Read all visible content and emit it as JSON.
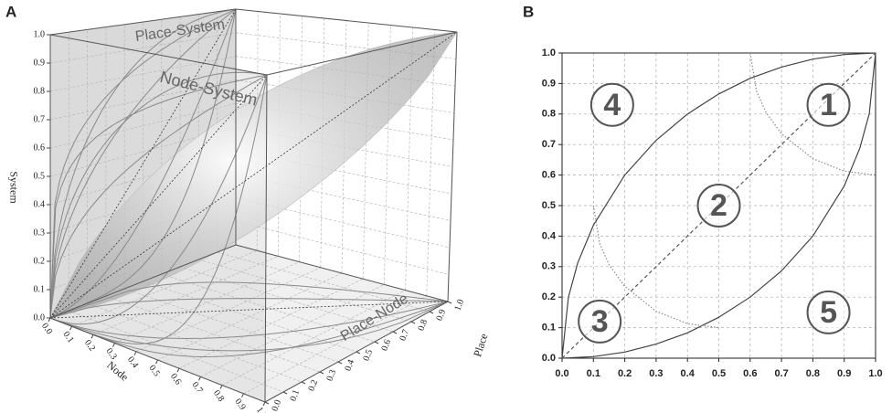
{
  "chart_data": [
    {
      "type": "cube3d",
      "panel": "A",
      "xlabel": "Node",
      "ylabel": "Place",
      "zlabel": "System",
      "plane_labels": [
        "Place-System",
        "Node-System",
        "Place-Node"
      ],
      "xticks": [
        {
          "value": 0,
          "label": "0.0"
        },
        0.1,
        0.2,
        0.3,
        0.4,
        0.5,
        0.6,
        0.7,
        0.8,
        0.9,
        {
          "value": 1,
          "label": "1.0"
        }
      ],
      "yticks": [
        {
          "value": 0,
          "label": "0.0"
        },
        0.1,
        0.2,
        0.3,
        0.4,
        0.5,
        0.6,
        0.7,
        0.8,
        0.9,
        {
          "value": 1,
          "label": "1.0"
        }
      ],
      "zticks": [
        {
          "value": 0,
          "label": "0.0"
        },
        0.1,
        0.2,
        0.3,
        0.4,
        0.5,
        0.6,
        0.7,
        0.8,
        0.9,
        {
          "value": 1,
          "label": "1.0"
        }
      ],
      "grid": true
    },
    {
      "type": "line",
      "panel": "B",
      "xlim": [
        0,
        1
      ],
      "ylim": [
        0,
        1
      ],
      "xticks": [
        {
          "value": 0,
          "label": "0.0"
        },
        0.1,
        0.2,
        0.3,
        0.4,
        0.5,
        0.6,
        0.7,
        0.8,
        0.9,
        {
          "value": 1,
          "label": "1.0"
        }
      ],
      "yticks": [
        {
          "value": 0,
          "label": "0.0"
        },
        0.1,
        0.2,
        0.3,
        0.4,
        0.5,
        0.6,
        0.7,
        0.8,
        0.9,
        {
          "value": 1,
          "label": "1.0"
        }
      ],
      "grid": true,
      "series": [
        {
          "color": "#444444",
          "style": "solid",
          "x": [
            0,
            0.02,
            0.05,
            0.1,
            0.2,
            0.3,
            0.4,
            0.5,
            0.6,
            0.7,
            0.8,
            0.9,
            1
          ],
          "values": [
            0,
            0.199,
            0.312,
            0.436,
            0.6,
            0.714,
            0.8,
            0.866,
            0.917,
            0.954,
            0.98,
            0.995,
            1
          ]
        },
        {
          "color": "#444444",
          "style": "solid",
          "x": [
            0,
            0.1,
            0.2,
            0.3,
            0.4,
            0.5,
            0.6,
            0.7,
            0.8,
            0.9,
            0.95,
            0.98,
            1
          ],
          "values": [
            0,
            0.005,
            0.02,
            0.046,
            0.083,
            0.134,
            0.2,
            0.286,
            0.4,
            0.564,
            0.688,
            0.801,
            1
          ]
        },
        {
          "color": "#555555",
          "style": "dashed",
          "x": [
            0,
            1
          ],
          "values": [
            0,
            1
          ]
        },
        {
          "color": "#888888",
          "style": "dotted",
          "x": [
            0.6,
            0.62,
            0.65,
            0.7,
            0.8,
            0.9,
            1
          ],
          "values": [
            1,
            0.875,
            0.806,
            0.735,
            0.654,
            0.613,
            0.6
          ]
        },
        {
          "color": "#888888",
          "style": "dotted",
          "x": [
            0.1,
            0.12,
            0.15,
            0.2,
            0.3,
            0.4,
            0.5
          ],
          "values": [
            0.5,
            0.375,
            0.306,
            0.235,
            0.154,
            0.113,
            0.1
          ]
        }
      ],
      "annotations": [
        {
          "text": "1",
          "x": 0.85,
          "y": 0.83
        },
        {
          "text": "2",
          "x": 0.5,
          "y": 0.5
        },
        {
          "text": "3",
          "x": 0.12,
          "y": 0.12
        },
        {
          "text": "4",
          "x": 0.16,
          "y": 0.83
        },
        {
          "text": "5",
          "x": 0.85,
          "y": 0.15
        }
      ]
    }
  ]
}
